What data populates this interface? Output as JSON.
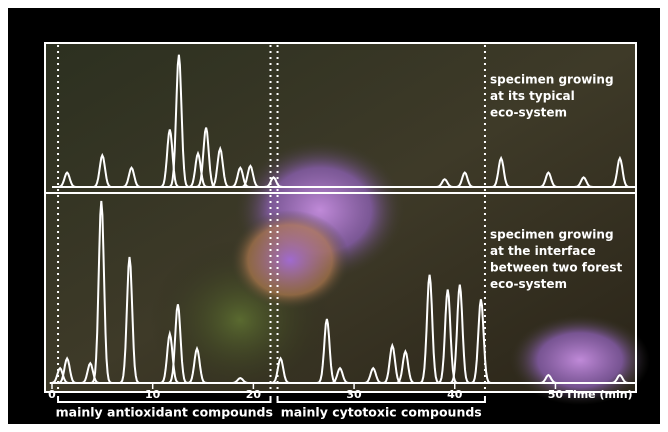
{
  "chart_data": {
    "type": "chromatogram",
    "x_label": "Time (min)",
    "xlim": [
      0,
      58
    ],
    "xticks": [
      0,
      10,
      20,
      30,
      40,
      50
    ],
    "color": "#ffffff",
    "series": [
      {
        "name": [
          "specimen growing",
          "at its typical",
          "eco-system"
        ],
        "x": [
          1.5,
          5.0,
          7.9,
          11.7,
          12.6,
          14.5,
          15.3,
          16.7,
          18.7,
          19.7,
          22.0,
          39.0,
          41.0,
          44.6,
          49.3,
          52.8,
          56.4
        ],
        "values": [
          15,
          33,
          20,
          60,
          138,
          35,
          62,
          40,
          20,
          22,
          10,
          8,
          15,
          30,
          15,
          10,
          30
        ],
        "ylim": [
          0,
          145
        ]
      },
      {
        "name": [
          "specimen growing",
          "at the interface",
          "between two forest",
          "eco-system"
        ],
        "x": [
          0.8,
          1.5,
          3.8,
          4.9,
          7.7,
          11.7,
          12.5,
          14.4,
          18.7,
          22.7,
          27.3,
          28.6,
          31.9,
          33.8,
          35.1,
          37.5,
          39.3,
          40.5,
          42.6,
          49.3,
          56.4
        ],
        "values": [
          15,
          25,
          20,
          185,
          128,
          50,
          80,
          35,
          5,
          25,
          65,
          15,
          15,
          38,
          32,
          110,
          95,
          100,
          85,
          8,
          8
        ],
        "ylim": [
          0,
          190
        ]
      }
    ],
    "regions": [
      {
        "label": "mainly antioxidant compounds",
        "start": 0.6,
        "end": 21.7
      },
      {
        "label": "mainly cytotoxic compounds",
        "start": 22.4,
        "end": 43.0
      }
    ]
  }
}
